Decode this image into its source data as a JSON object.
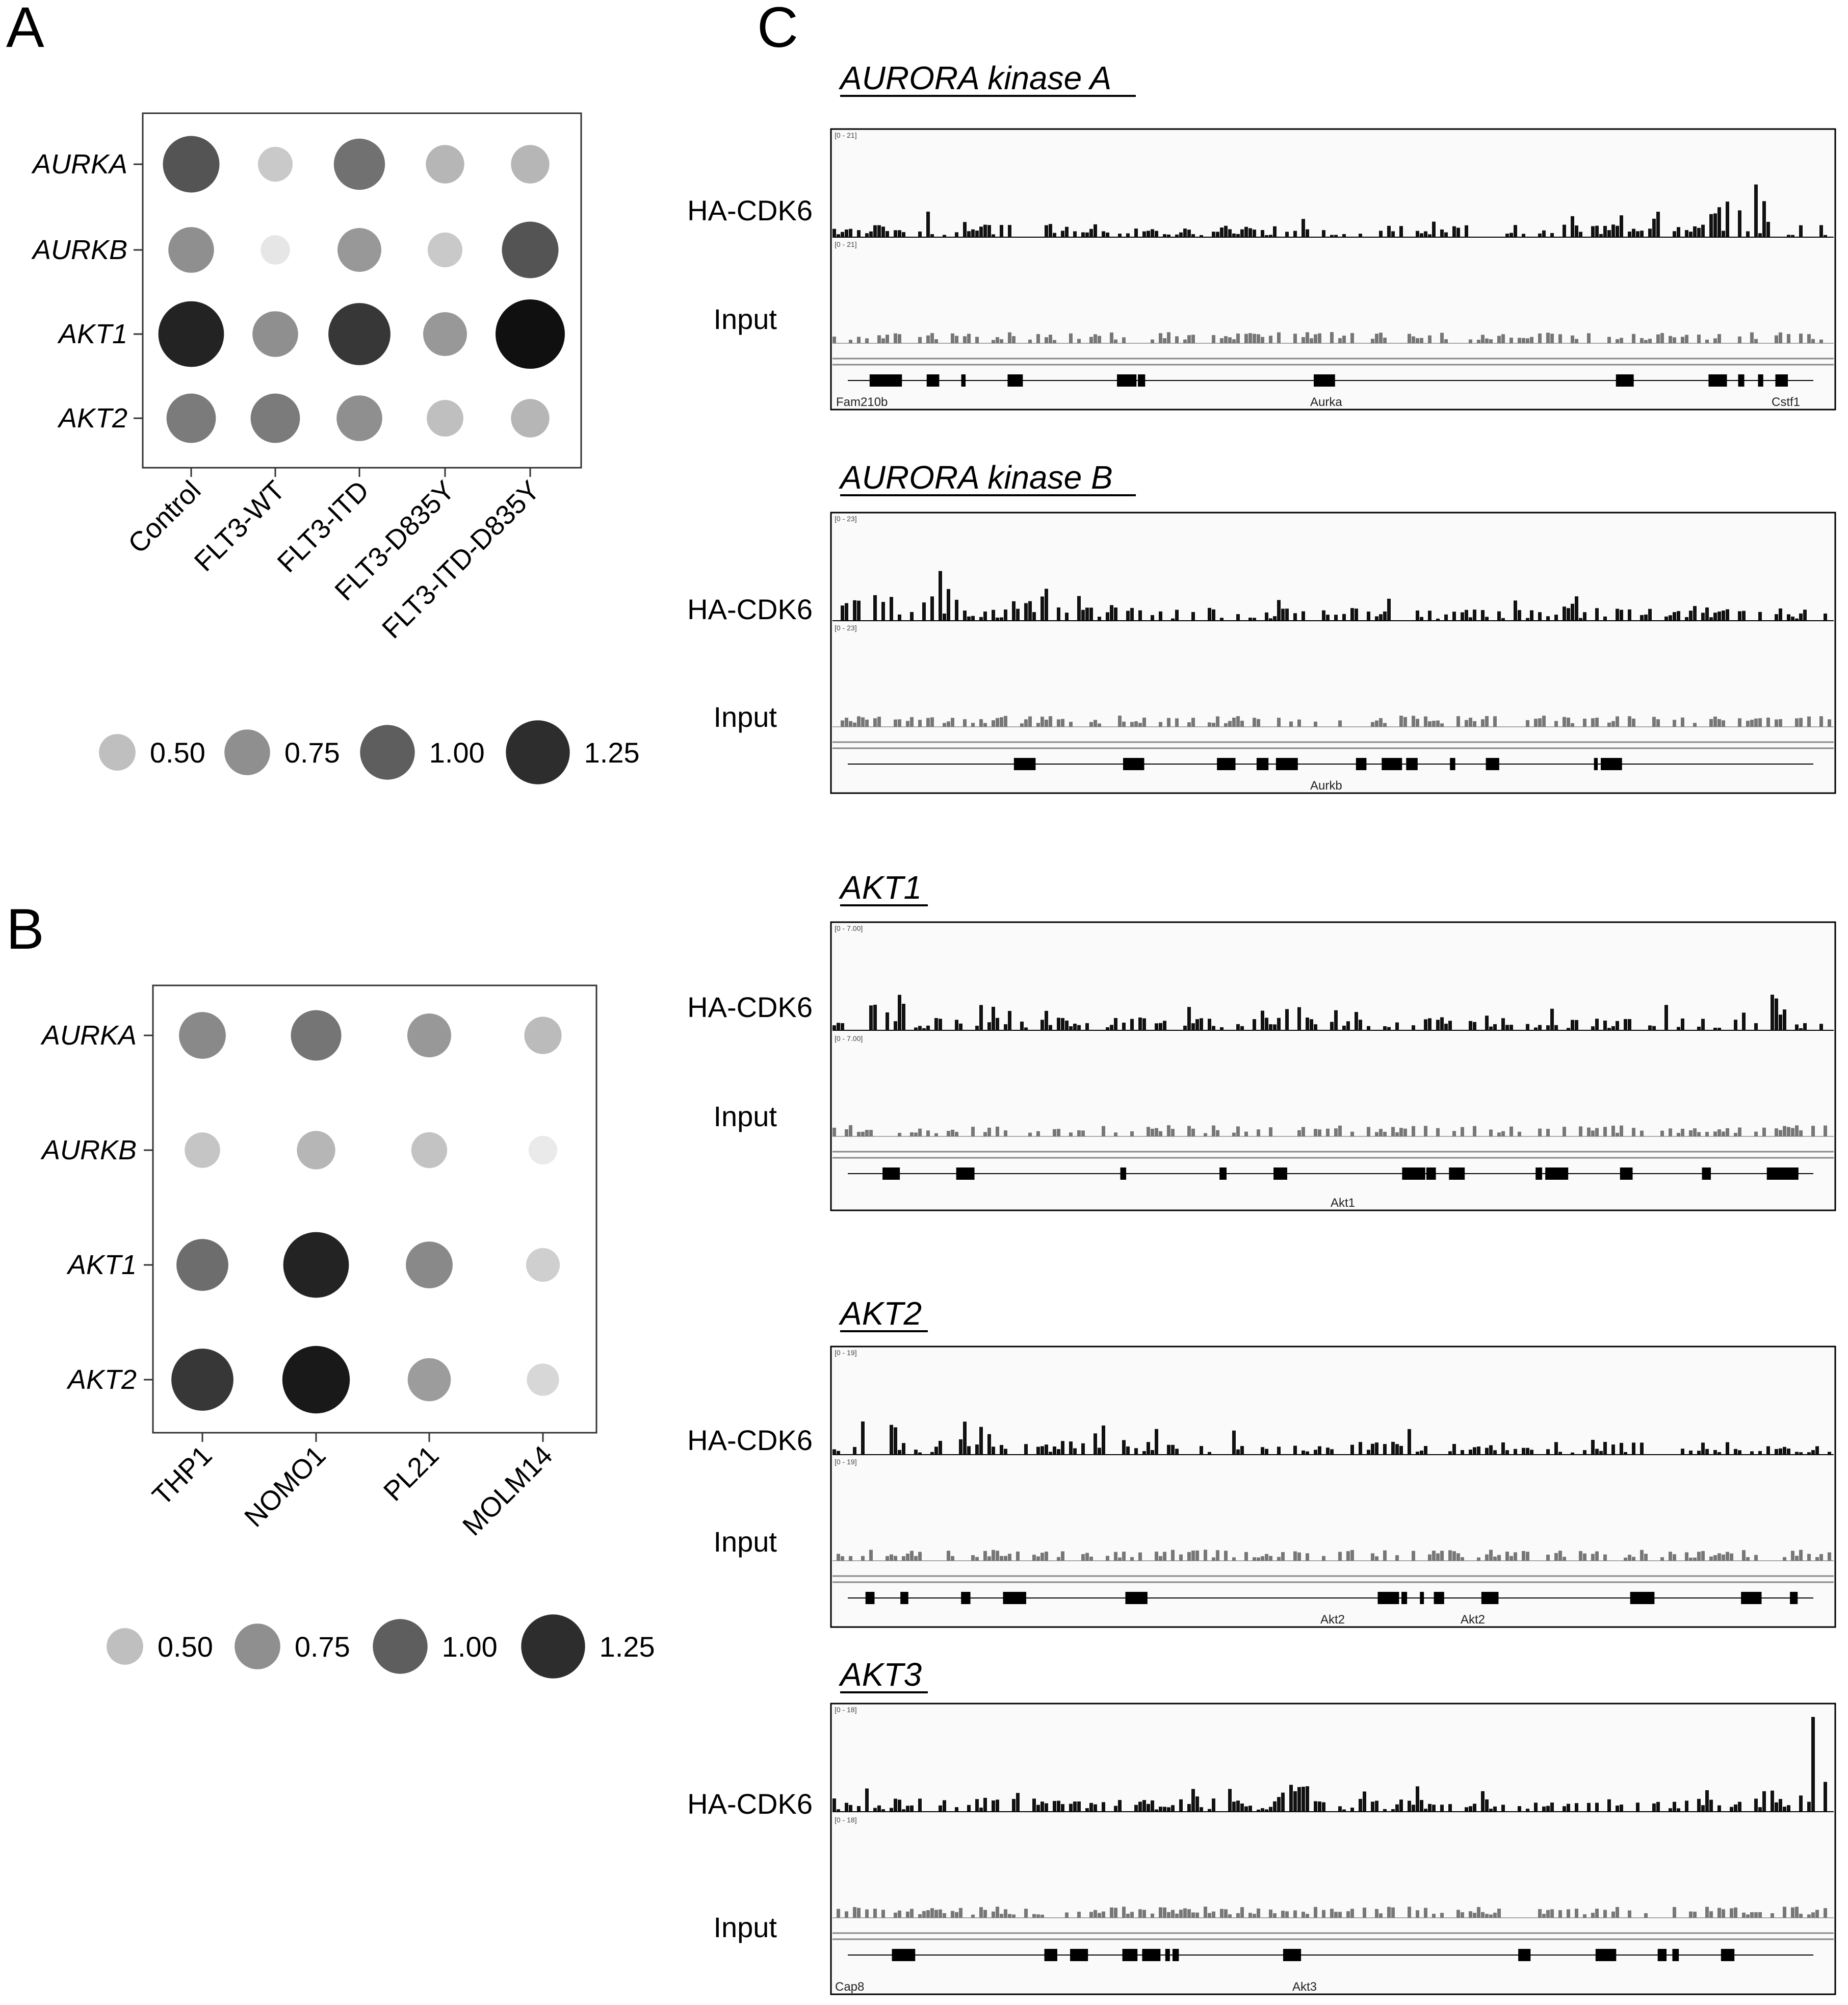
{
  "panels": {
    "A": {
      "letter": "A",
      "rows": [
        "AURKA",
        "AURKB",
        "AKT1",
        "AKT2"
      ],
      "cols": [
        "Control",
        "FLT3-WT",
        "FLT3-ITD",
        "FLT3-D835Y",
        "FLT3-ITD-D835Y"
      ],
      "legend": [
        "0.50",
        "0.75",
        "1.00",
        "1.25"
      ]
    },
    "B": {
      "letter": "B",
      "rows": [
        "AURKA",
        "AURKB",
        "AKT1",
        "AKT2"
      ],
      "cols": [
        "THP1",
        "NOMO1",
        "PL21",
        "MOLM14"
      ],
      "legend": [
        "0.50",
        "0.75",
        "1.00",
        "1.25"
      ]
    },
    "C": {
      "letter": "C",
      "tracks": [
        {
          "title": "AURORA kinase A",
          "signal_label": "HA-CDK6",
          "input_label": "Input",
          "signal_range": "[0 - 21]",
          "input_range": "[0 - 21]",
          "genes": [
            "Fam210b",
            "Aurka",
            "Cstf1"
          ]
        },
        {
          "title": "AURORA kinase B",
          "signal_label": "HA-CDK6",
          "input_label": "Input",
          "signal_range": "[0 - 23]",
          "input_range": "[0 - 23]",
          "genes": [
            "Aurkb"
          ]
        },
        {
          "title": "AKT1",
          "signal_label": "HA-CDK6",
          "input_label": "Input",
          "signal_range": "[0 - 7.00]",
          "input_range": "[0 - 7.00]",
          "genes": [
            "Akt1"
          ]
        },
        {
          "title": "AKT2",
          "signal_label": "HA-CDK6",
          "input_label": "Input",
          "signal_range": "[0 - 19]",
          "input_range": "[0 - 19]",
          "genes": [
            "Akt2",
            "Akt2"
          ]
        },
        {
          "title": "AKT3",
          "signal_label": "HA-CDK6",
          "input_label": "Input",
          "signal_range": "[0 - 18]",
          "input_range": "[0 - 18]",
          "genes": [
            "Cap8",
            "Akt3"
          ]
        }
      ]
    }
  },
  "chart_data": [
    {
      "type": "dot-heatmap",
      "rows": [
        "AURKA",
        "AURKB",
        "AKT1",
        "AKT2"
      ],
      "columns": [
        "Control",
        "FLT3-WT",
        "FLT3-ITD",
        "FLT3-D835Y",
        "FLT3-ITD-D835Y"
      ],
      "values": [
        [
          1.05,
          0.45,
          0.9,
          0.55,
          0.55
        ],
        [
          0.75,
          0.3,
          0.7,
          0.45,
          1.05
        ],
        [
          1.3,
          0.75,
          1.2,
          0.7,
          1.4
        ],
        [
          0.85,
          0.85,
          0.75,
          0.5,
          0.55
        ]
      ],
      "legend": [
        0.5,
        0.75,
        1.0,
        1.25
      ],
      "legend_placement": "bottom"
    },
    {
      "type": "dot-heatmap",
      "rows": [
        "AURKA",
        "AURKB",
        "AKT1",
        "AKT2"
      ],
      "columns": [
        "THP1",
        "NOMO1",
        "PL21",
        "MOLM14"
      ],
      "values": [
        [
          0.78,
          0.88,
          0.7,
          0.52
        ],
        [
          0.47,
          0.55,
          0.48,
          0.28
        ],
        [
          0.92,
          1.3,
          0.78,
          0.42
        ],
        [
          1.2,
          1.35,
          0.68,
          0.38
        ]
      ],
      "legend": [
        0.5,
        0.75,
        1.0,
        1.25
      ],
      "legend_placement": "bottom"
    }
  ]
}
